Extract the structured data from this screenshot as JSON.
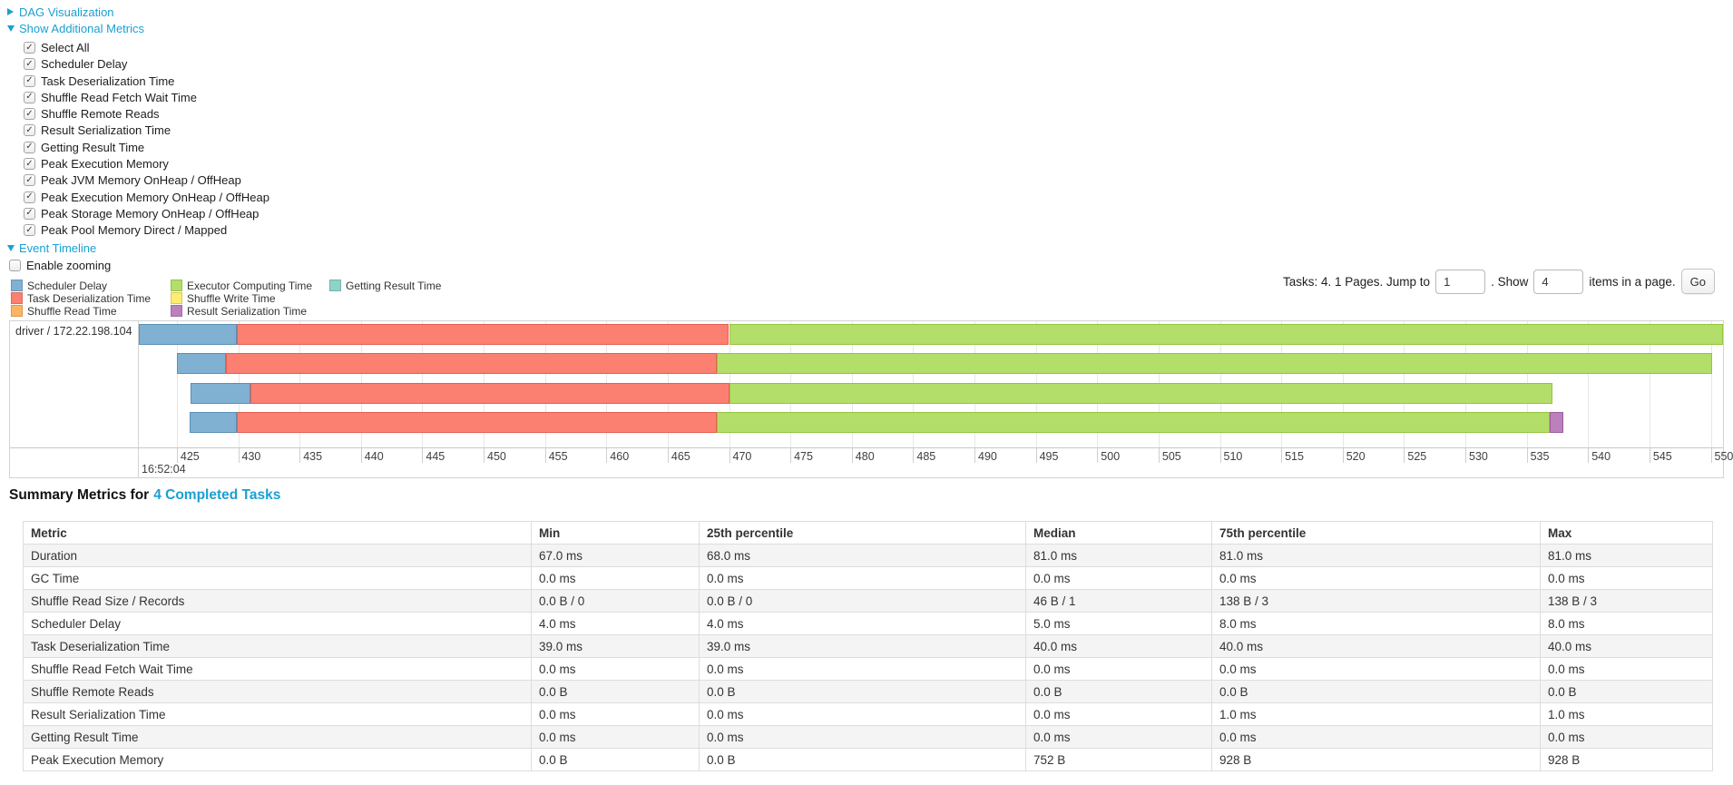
{
  "colors": {
    "link": "#1aa0d2",
    "scheduler_delay": {
      "fill": "#80B1D3",
      "border": "#5A8FB8"
    },
    "task_deserialization_time": {
      "fill": "#FB8072",
      "border": "#E55F50"
    },
    "shuffle_read_time": {
      "fill": "#FDB462",
      "border": "#E89A3F"
    },
    "executor_computing_time": {
      "fill": "#B3DE69",
      "border": "#94C53F"
    },
    "shuffle_write_time": {
      "fill": "#FFED6F",
      "border": "#E0CC3F"
    },
    "result_serialization_time": {
      "fill": "#BC80BD",
      "border": "#9D5C9F"
    },
    "getting_result_time": {
      "fill": "#8DD3C7",
      "border": "#5FB0A2"
    }
  },
  "sections": {
    "dag": {
      "label": "DAG Visualization",
      "collapsed": true
    },
    "metrics": {
      "label": "Show Additional Metrics",
      "collapsed": false
    },
    "timeline": {
      "label": "Event Timeline",
      "collapsed": false
    }
  },
  "metric_checkboxes": [
    {
      "label": "Select All",
      "checked": true
    },
    {
      "label": "Scheduler Delay",
      "checked": true
    },
    {
      "label": "Task Deserialization Time",
      "checked": true
    },
    {
      "label": "Shuffle Read Fetch Wait Time",
      "checked": true
    },
    {
      "label": "Shuffle Remote Reads",
      "checked": true
    },
    {
      "label": "Result Serialization Time",
      "checked": true
    },
    {
      "label": "Getting Result Time",
      "checked": true
    },
    {
      "label": "Peak Execution Memory",
      "checked": true
    },
    {
      "label": "Peak JVM Memory OnHeap / OffHeap",
      "checked": true
    },
    {
      "label": "Peak Execution Memory OnHeap / OffHeap",
      "checked": true
    },
    {
      "label": "Peak Storage Memory OnHeap / OffHeap",
      "checked": true
    },
    {
      "label": "Peak Pool Memory Direct / Mapped",
      "checked": true
    }
  ],
  "enable_zooming": {
    "label": "Enable zooming",
    "checked": false
  },
  "legend": [
    {
      "label": "Scheduler Delay",
      "metric": "scheduler_delay"
    },
    {
      "label": "Task Deserialization Time",
      "metric": "task_deserialization_time"
    },
    {
      "label": "Shuffle Read Time",
      "metric": "shuffle_read_time"
    },
    {
      "label": "Executor Computing Time",
      "metric": "executor_computing_time"
    },
    {
      "label": "Shuffle Write Time",
      "metric": "shuffle_write_time"
    },
    {
      "label": "Result Serialization Time",
      "metric": "result_serialization_time"
    },
    {
      "label": "Getting Result Time",
      "metric": "getting_result_time"
    }
  ],
  "pagination": {
    "prefix": "Tasks: 4. 1 Pages. Jump to",
    "jump_value": "1",
    "mid": ". Show",
    "page_size_value": "4",
    "suffix": "items in a page.",
    "go_label": "Go"
  },
  "chart_data": {
    "type": "timeline",
    "group_label": "driver / 172.22.198.104",
    "x_unit": "milliseconds after 16:52:04",
    "x_min": 421.9,
    "x_max": 551.0,
    "ticks": [
      425,
      430,
      435,
      440,
      445,
      450,
      455,
      460,
      465,
      470,
      475,
      480,
      485,
      490,
      495,
      500,
      505,
      510,
      515,
      520,
      525,
      530,
      535,
      540,
      545,
      550
    ],
    "origin_time_label": "16:52:04",
    "tasks": [
      {
        "segments": [
          {
            "metric": "scheduler_delay",
            "start": 421.9,
            "end": 429.9
          },
          {
            "metric": "task_deserialization_time",
            "start": 429.9,
            "end": 470.0
          },
          {
            "metric": "executor_computing_time",
            "start": 470.0,
            "end": 551.0
          }
        ]
      },
      {
        "segments": [
          {
            "metric": "scheduler_delay",
            "start": 425.0,
            "end": 429.0
          },
          {
            "metric": "task_deserialization_time",
            "start": 429.0,
            "end": 469.0
          },
          {
            "metric": "executor_computing_time",
            "start": 469.0,
            "end": 550.1
          }
        ]
      },
      {
        "segments": [
          {
            "metric": "scheduler_delay",
            "start": 426.1,
            "end": 431.0
          },
          {
            "metric": "task_deserialization_time",
            "start": 431.0,
            "end": 470.0
          },
          {
            "metric": "executor_computing_time",
            "start": 470.0,
            "end": 537.1
          }
        ]
      },
      {
        "segments": [
          {
            "metric": "scheduler_delay",
            "start": 426.0,
            "end": 429.9
          },
          {
            "metric": "task_deserialization_time",
            "start": 429.9,
            "end": 469.0
          },
          {
            "metric": "executor_computing_time",
            "start": 469.0,
            "end": 536.9
          },
          {
            "metric": "result_serialization_time",
            "start": 536.9,
            "end": 538.0
          }
        ]
      }
    ]
  },
  "summary": {
    "title_prefix": "Summary Metrics for",
    "title_link": "4 Completed Tasks",
    "columns": [
      "Metric",
      "Min",
      "25th percentile",
      "Median",
      "75th percentile",
      "Max"
    ],
    "rows": [
      [
        "Duration",
        "67.0 ms",
        "68.0 ms",
        "81.0 ms",
        "81.0 ms",
        "81.0 ms"
      ],
      [
        "GC Time",
        "0.0 ms",
        "0.0 ms",
        "0.0 ms",
        "0.0 ms",
        "0.0 ms"
      ],
      [
        "Shuffle Read Size / Records",
        "0.0 B / 0",
        "0.0 B / 0",
        "46 B / 1",
        "138 B / 3",
        "138 B / 3"
      ],
      [
        "Scheduler Delay",
        "4.0 ms",
        "4.0 ms",
        "5.0 ms",
        "8.0 ms",
        "8.0 ms"
      ],
      [
        "Task Deserialization Time",
        "39.0 ms",
        "39.0 ms",
        "40.0 ms",
        "40.0 ms",
        "40.0 ms"
      ],
      [
        "Shuffle Read Fetch Wait Time",
        "0.0 ms",
        "0.0 ms",
        "0.0 ms",
        "0.0 ms",
        "0.0 ms"
      ],
      [
        "Shuffle Remote Reads",
        "0.0 B",
        "0.0 B",
        "0.0 B",
        "0.0 B",
        "0.0 B"
      ],
      [
        "Result Serialization Time",
        "0.0 ms",
        "0.0 ms",
        "0.0 ms",
        "1.0 ms",
        "1.0 ms"
      ],
      [
        "Getting Result Time",
        "0.0 ms",
        "0.0 ms",
        "0.0 ms",
        "0.0 ms",
        "0.0 ms"
      ],
      [
        "Peak Execution Memory",
        "0.0 B",
        "0.0 B",
        "752 B",
        "928 B",
        "928 B"
      ]
    ]
  }
}
